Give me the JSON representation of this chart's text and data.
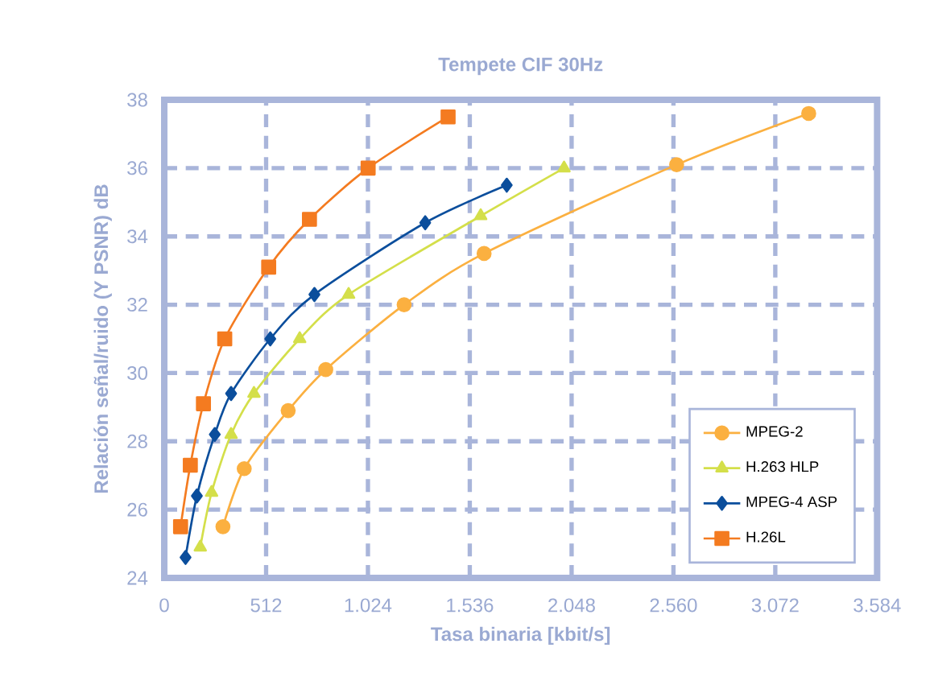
{
  "chart_data": {
    "type": "line",
    "title": "Tempete CIF 30Hz",
    "xlabel": "Tasa binaria [kbit/s]",
    "ylabel": "Relación señal/ruido (Y PSNR) dB",
    "xlim": [
      0,
      3584
    ],
    "xticks": [
      0,
      512,
      {
        "value": 1024,
        "label": "1.024"
      },
      {
        "value": 1536,
        "label": "1.536"
      },
      {
        "value": 2048,
        "label": "2.048"
      },
      {
        "value": 2560,
        "label": "2.560"
      },
      {
        "value": 3072,
        "label": "3.072"
      },
      {
        "value": 3584,
        "label": "3.584"
      }
    ],
    "ylim": [
      24,
      38
    ],
    "yticks": [
      24,
      26,
      28,
      30,
      32,
      34,
      36,
      38
    ],
    "grid": true,
    "legend": "bottom right",
    "line_style": "solid",
    "series": [
      {
        "name": "MPEG-2",
        "color": "#fbb040",
        "marker": "circle",
        "x": [
          295,
          402,
          623,
          812,
          1206,
          1608,
          2576,
          3240
        ],
        "values": [
          25.5,
          27.2,
          28.9,
          30.1,
          32.0,
          33.5,
          36.1,
          37.6
        ]
      },
      {
        "name": "H.263 HLP",
        "color": "#d4df4a",
        "marker": "triangle",
        "x": [
          181,
          238,
          336,
          451,
          681,
          927,
          1591,
          2010
        ],
        "values": [
          24.9,
          26.5,
          28.2,
          29.4,
          31.0,
          32.3,
          34.6,
          36.0
        ]
      },
      {
        "name": "MPEG-4 ASP",
        "color": "#0b4e9c",
        "marker": "diamond",
        "x": [
          107,
          164,
          254,
          336,
          533,
          755,
          1312,
          1722
        ],
        "values": [
          24.6,
          26.4,
          28.2,
          29.4,
          31.0,
          32.3,
          34.4,
          35.5
        ]
      },
      {
        "name": "H.26L",
        "color": "#f47b20",
        "marker": "square",
        "x": [
          82,
          131,
          197,
          304,
          525,
          730,
          1025,
          1427
        ],
        "values": [
          25.5,
          27.3,
          29.1,
          31.0,
          33.1,
          34.5,
          36.0,
          37.5
        ]
      }
    ]
  }
}
